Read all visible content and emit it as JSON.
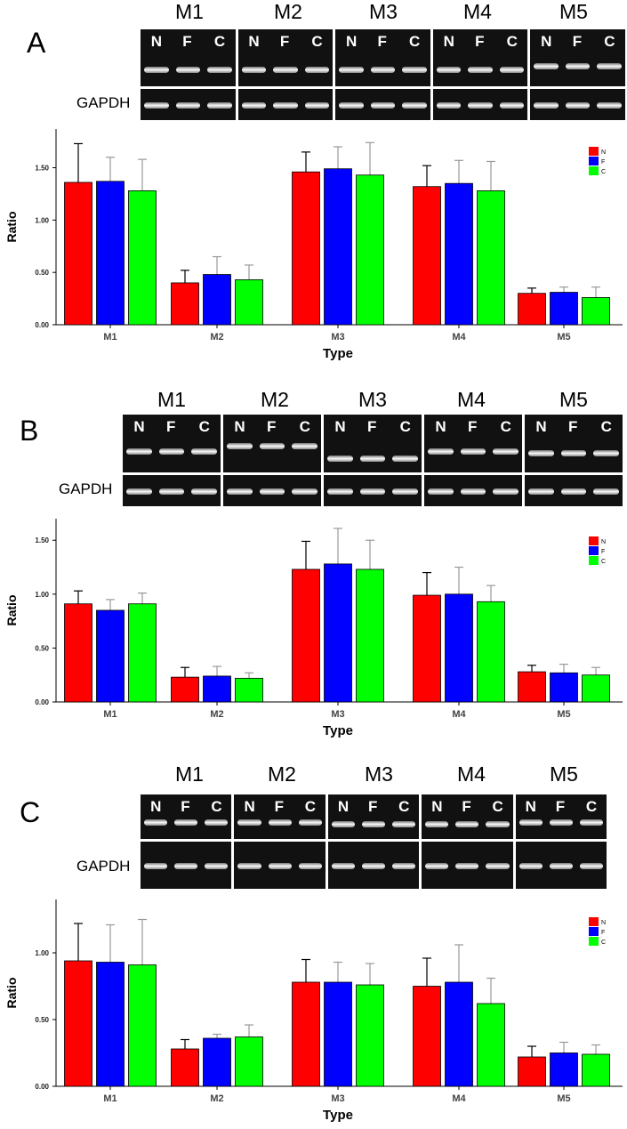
{
  "panels": [
    {
      "letter": "A",
      "markers": [
        "M1",
        "M2",
        "M3",
        "M4",
        "M5"
      ],
      "lanes": [
        "N",
        "F",
        "C"
      ],
      "gapdh_label": "GAPDH"
    },
    {
      "letter": "B",
      "markers": [
        "M1",
        "M2",
        "M3",
        "M4",
        "M5"
      ],
      "lanes": [
        "N",
        "F",
        "C"
      ],
      "gapdh_label": "GAPDH"
    },
    {
      "letter": "C",
      "markers": [
        "M1",
        "M2",
        "M3",
        "M4",
        "M5"
      ],
      "lanes": [
        "N",
        "F",
        "C"
      ],
      "gapdh_label": "GAPDH"
    }
  ],
  "colors": {
    "N": "#ff0000",
    "F": "#0000ff",
    "C": "#00ff00"
  },
  "chart_data": [
    {
      "type": "bar",
      "panel": "A",
      "categories": [
        "M1",
        "M2",
        "M3",
        "M4",
        "M5"
      ],
      "series": [
        {
          "name": "N",
          "values": [
            1.36,
            0.4,
            1.46,
            1.32,
            0.3
          ],
          "errors": [
            0.37,
            0.12,
            0.19,
            0.2,
            0.05
          ]
        },
        {
          "name": "F",
          "values": [
            1.37,
            0.48,
            1.49,
            1.35,
            0.31
          ],
          "errors": [
            0.23,
            0.17,
            0.21,
            0.22,
            0.05
          ]
        },
        {
          "name": "C",
          "values": [
            1.28,
            0.43,
            1.43,
            1.28,
            0.26
          ],
          "errors": [
            0.3,
            0.14,
            0.31,
            0.28,
            0.1
          ]
        }
      ],
      "xlabel": "Type",
      "ylabel": "Ratio",
      "yticks": [
        "0.00",
        "0.50",
        "1.00",
        "1.50"
      ],
      "ylim": [
        0,
        1.87
      ],
      "legend": [
        "N",
        "F",
        "C"
      ]
    },
    {
      "type": "bar",
      "panel": "B",
      "categories": [
        "M1",
        "M2",
        "M3",
        "M4",
        "M5"
      ],
      "series": [
        {
          "name": "N",
          "values": [
            0.91,
            0.23,
            1.23,
            0.99,
            0.28
          ],
          "errors": [
            0.12,
            0.09,
            0.26,
            0.21,
            0.06
          ]
        },
        {
          "name": "F",
          "values": [
            0.85,
            0.24,
            1.28,
            1.0,
            0.27
          ],
          "errors": [
            0.1,
            0.09,
            0.33,
            0.25,
            0.08
          ]
        },
        {
          "name": "C",
          "values": [
            0.91,
            0.22,
            1.23,
            0.93,
            0.25
          ],
          "errors": [
            0.1,
            0.05,
            0.27,
            0.15,
            0.07
          ]
        }
      ],
      "xlabel": "Type",
      "ylabel": "Ratio",
      "yticks": [
        "0.00",
        "0.50",
        "1.00",
        "1.50"
      ],
      "ylim": [
        0,
        1.7
      ],
      "legend": [
        "N",
        "F",
        "C"
      ]
    },
    {
      "type": "bar",
      "panel": "C",
      "categories": [
        "M1",
        "M2",
        "M3",
        "M4",
        "M5"
      ],
      "series": [
        {
          "name": "N",
          "values": [
            0.94,
            0.28,
            0.78,
            0.75,
            0.22
          ],
          "errors": [
            0.28,
            0.07,
            0.17,
            0.21,
            0.08
          ]
        },
        {
          "name": "F",
          "values": [
            0.93,
            0.36,
            0.78,
            0.78,
            0.25
          ],
          "errors": [
            0.28,
            0.03,
            0.15,
            0.28,
            0.08
          ]
        },
        {
          "name": "C",
          "values": [
            0.91,
            0.37,
            0.76,
            0.62,
            0.24
          ],
          "errors": [
            0.34,
            0.09,
            0.16,
            0.19,
            0.07
          ]
        }
      ],
      "xlabel": "Type",
      "ylabel": "Ratio",
      "yticks": [
        "0.00",
        "0.50",
        "1.00"
      ],
      "ylim": [
        0,
        1.4
      ],
      "legend": [
        "N",
        "F",
        "C"
      ]
    }
  ]
}
